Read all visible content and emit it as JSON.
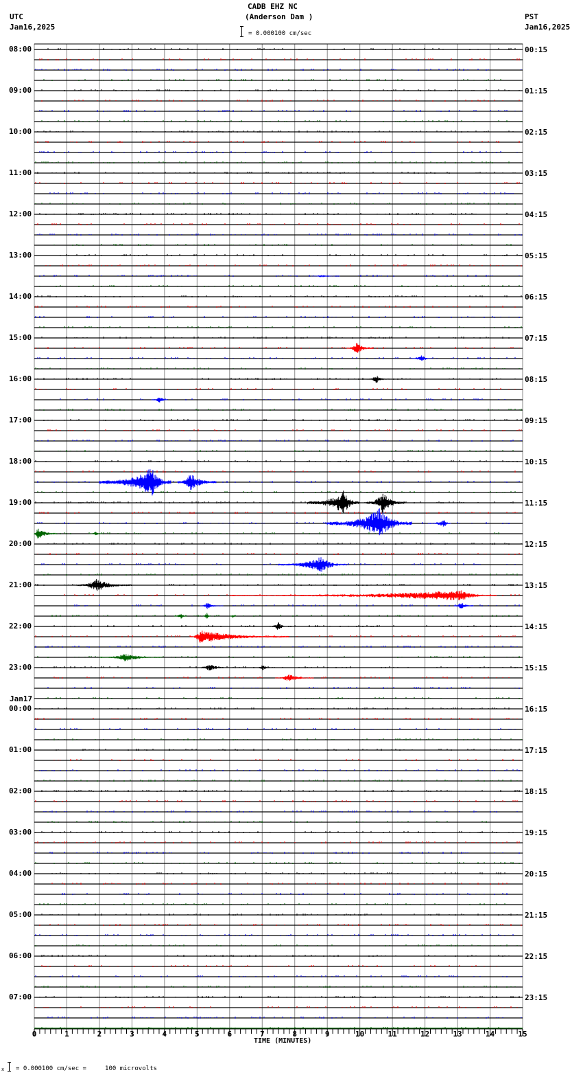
{
  "header": {
    "station": "CADB EHZ NC",
    "location": "(Anderson Dam )",
    "scale_label": "= 0.000100 cm/sec",
    "left_tz": "UTC",
    "left_date": "Jan16,2025",
    "right_tz": "PST",
    "right_date": "Jan16,2025"
  },
  "footer": {
    "scale_note": "= 0.000100 cm/sec =     100 microvolts",
    "marker": "x"
  },
  "chart_data": {
    "type": "line",
    "title": "CADB EHZ NC (Anderson Dam )",
    "subtitle": "= 0.000100 cm/sec",
    "xlabel": "TIME (MINUTES)",
    "ylabel": "",
    "xlim": [
      0,
      15
    ],
    "x_ticks": [
      "0",
      "1",
      "2",
      "3",
      "4",
      "5",
      "6",
      "7",
      "8",
      "9",
      "10",
      "11",
      "12",
      "13",
      "14",
      "15"
    ],
    "minor_ticks_per_minute": 6,
    "grid": true,
    "rows": 96,
    "rows_per_hour": 4,
    "trace_colors": [
      "#000000",
      "#ff0000",
      "#0000ff",
      "#006400"
    ],
    "left_labels": [
      {
        "row": 0,
        "text": "08:00"
      },
      {
        "row": 4,
        "text": "09:00"
      },
      {
        "row": 8,
        "text": "10:00"
      },
      {
        "row": 12,
        "text": "11:00"
      },
      {
        "row": 16,
        "text": "12:00"
      },
      {
        "row": 20,
        "text": "13:00"
      },
      {
        "row": 24,
        "text": "14:00"
      },
      {
        "row": 28,
        "text": "15:00"
      },
      {
        "row": 32,
        "text": "16:00"
      },
      {
        "row": 36,
        "text": "17:00"
      },
      {
        "row": 40,
        "text": "18:00"
      },
      {
        "row": 44,
        "text": "19:00"
      },
      {
        "row": 48,
        "text": "20:00"
      },
      {
        "row": 52,
        "text": "21:00"
      },
      {
        "row": 56,
        "text": "22:00"
      },
      {
        "row": 60,
        "text": "23:00"
      },
      {
        "row": 64,
        "text": "00:00",
        "date": "Jan17"
      },
      {
        "row": 68,
        "text": "01:00"
      },
      {
        "row": 72,
        "text": "02:00"
      },
      {
        "row": 76,
        "text": "03:00"
      },
      {
        "row": 80,
        "text": "04:00"
      },
      {
        "row": 84,
        "text": "05:00"
      },
      {
        "row": 88,
        "text": "06:00"
      },
      {
        "row": 92,
        "text": "07:00"
      }
    ],
    "right_labels": [
      {
        "row": 0,
        "text": "00:15"
      },
      {
        "row": 4,
        "text": "01:15"
      },
      {
        "row": 8,
        "text": "02:15"
      },
      {
        "row": 12,
        "text": "03:15"
      },
      {
        "row": 16,
        "text": "04:15"
      },
      {
        "row": 20,
        "text": "05:15"
      },
      {
        "row": 24,
        "text": "06:15"
      },
      {
        "row": 28,
        "text": "07:15"
      },
      {
        "row": 32,
        "text": "08:15"
      },
      {
        "row": 36,
        "text": "09:15"
      },
      {
        "row": 40,
        "text": "10:15"
      },
      {
        "row": 44,
        "text": "11:15"
      },
      {
        "row": 48,
        "text": "12:15"
      },
      {
        "row": 52,
        "text": "13:15"
      },
      {
        "row": 56,
        "text": "14:15"
      },
      {
        "row": 60,
        "text": "15:15"
      },
      {
        "row": 64,
        "text": "16:15"
      },
      {
        "row": 68,
        "text": "17:15"
      },
      {
        "row": 72,
        "text": "18:15"
      },
      {
        "row": 76,
        "text": "19:15"
      },
      {
        "row": 80,
        "text": "20:15"
      },
      {
        "row": 84,
        "text": "21:15"
      },
      {
        "row": 88,
        "text": "22:15"
      },
      {
        "row": 92,
        "text": "23:15"
      }
    ],
    "events": [
      {
        "row": 22,
        "start": 8.5,
        "end": 9.4,
        "amp": 2,
        "peak": 8.8
      },
      {
        "row": 29,
        "start": 9.6,
        "end": 10.4,
        "amp": 9,
        "peak": 9.9
      },
      {
        "row": 30,
        "start": 11.6,
        "end": 12.2,
        "amp": 6,
        "peak": 11.9
      },
      {
        "row": 32,
        "start": 10.2,
        "end": 10.9,
        "amp": 6,
        "peak": 10.5
      },
      {
        "row": 34,
        "start": 3.6,
        "end": 4.1,
        "amp": 6,
        "peak": 3.85
      },
      {
        "row": 42,
        "start": 2.0,
        "end": 4.2,
        "amp": 22,
        "peak": 3.6
      },
      {
        "row": 42,
        "start": 4.4,
        "end": 5.6,
        "amp": 14,
        "peak": 4.8
      },
      {
        "row": 44,
        "start": 8.4,
        "end": 10.0,
        "amp": 18,
        "peak": 9.5
      },
      {
        "row": 44,
        "start": 10.2,
        "end": 11.4,
        "amp": 16,
        "peak": 10.7
      },
      {
        "row": 46,
        "start": 9.0,
        "end": 11.6,
        "amp": 22,
        "peak": 10.6
      },
      {
        "row": 46,
        "start": 12.1,
        "end": 12.8,
        "amp": 6,
        "peak": 12.6
      },
      {
        "row": 47,
        "start": 0.0,
        "end": 0.7,
        "amp": 10,
        "peak": 0.1
      },
      {
        "row": 47,
        "start": 1.7,
        "end": 2.1,
        "amp": 4,
        "peak": 1.9
      },
      {
        "row": 50,
        "start": 7.5,
        "end": 9.6,
        "amp": 12,
        "peak": 8.8
      },
      {
        "row": 52,
        "start": 1.3,
        "end": 3.0,
        "amp": 10,
        "peak": 1.9
      },
      {
        "row": 53,
        "start": 6.0,
        "end": 14.2,
        "amp": 8,
        "peak": 13.1
      },
      {
        "row": 54,
        "start": 5.1,
        "end": 5.8,
        "amp": 5,
        "peak": 5.3
      },
      {
        "row": 54,
        "start": 12.9,
        "end": 13.5,
        "amp": 6,
        "peak": 13.1
      },
      {
        "row": 55,
        "start": 4.3,
        "end": 4.7,
        "amp": 5,
        "peak": 4.5
      },
      {
        "row": 55,
        "start": 5.2,
        "end": 5.4,
        "amp": 8,
        "peak": 5.3
      },
      {
        "row": 55,
        "start": 6.0,
        "end": 6.2,
        "amp": 5,
        "peak": 6.1
      },
      {
        "row": 56,
        "start": 7.3,
        "end": 7.7,
        "amp": 9,
        "peak": 7.5
      },
      {
        "row": 57,
        "start": 4.8,
        "end": 7.8,
        "amp": 10,
        "peak": 5.1
      },
      {
        "row": 59,
        "start": 2.0,
        "end": 3.9,
        "amp": 6,
        "peak": 2.8
      },
      {
        "row": 60,
        "start": 4.9,
        "end": 6.0,
        "amp": 5,
        "peak": 5.4
      },
      {
        "row": 60,
        "start": 6.8,
        "end": 7.4,
        "amp": 4,
        "peak": 7.0
      },
      {
        "row": 61,
        "start": 7.4,
        "end": 8.6,
        "amp": 6,
        "peak": 7.8
      }
    ]
  }
}
